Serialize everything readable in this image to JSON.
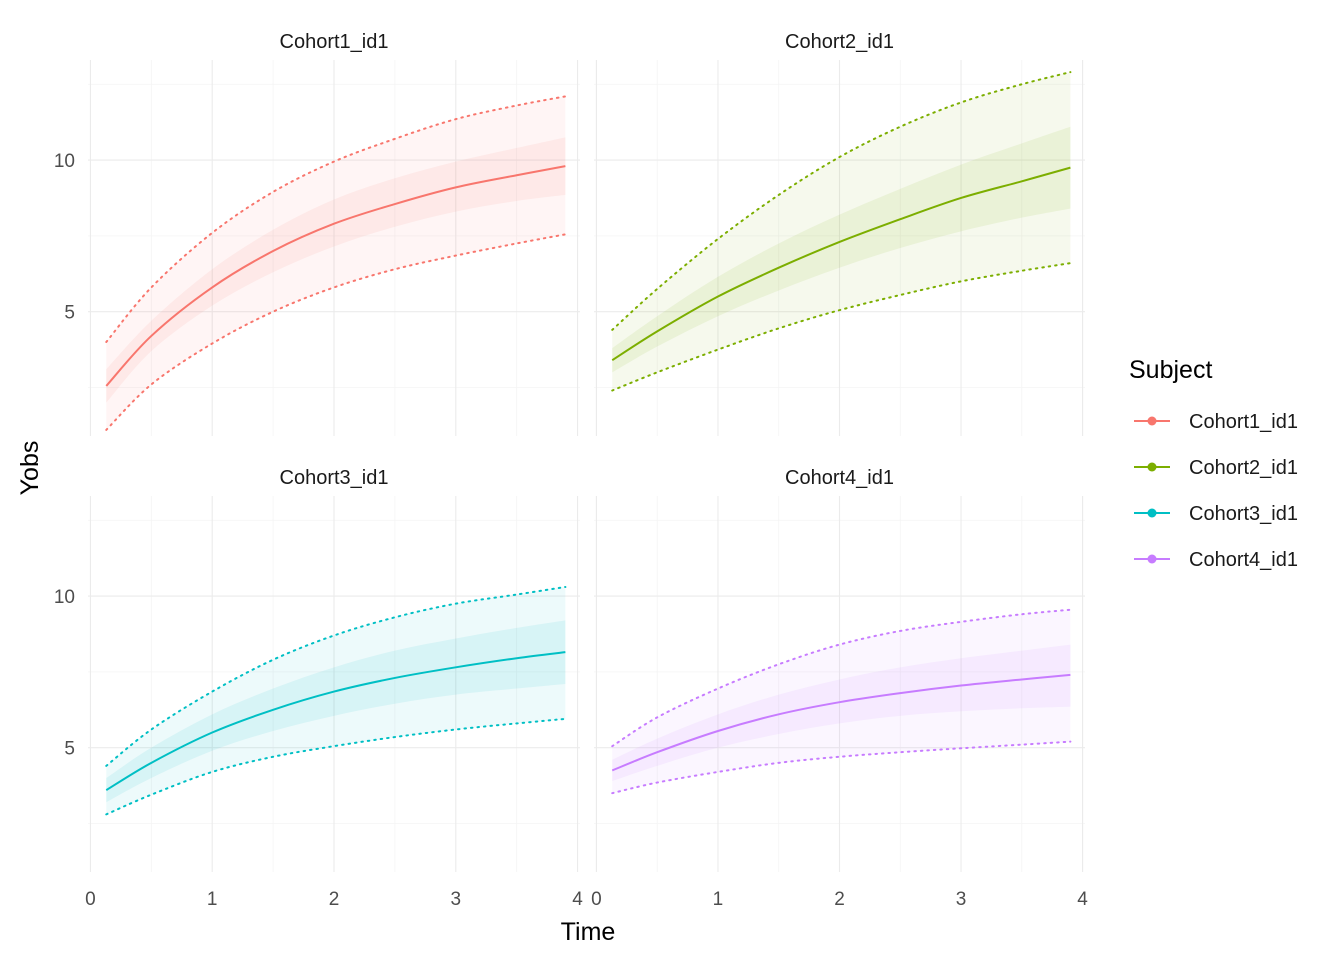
{
  "chart_data": {
    "type": "line",
    "xlabel": "Time",
    "ylabel": "Yobs",
    "xlim": [
      -0.02,
      4.02
    ],
    "ylim": [
      0.9,
      13.3
    ],
    "x_ticks": [
      0,
      1,
      2,
      3,
      4
    ],
    "y_ticks": [
      5,
      10
    ],
    "grid": true,
    "legend": {
      "title": "Subject",
      "position": "right"
    },
    "panels": [
      {
        "name": "Cohort1_id1",
        "color": "#F8766D",
        "x": [
          0.13,
          0.5,
          1.0,
          1.5,
          2.0,
          2.5,
          3.0,
          3.5,
          3.9
        ],
        "median": [
          2.55,
          4.2,
          5.8,
          7.0,
          7.9,
          8.55,
          9.1,
          9.5,
          9.8
        ],
        "inner_lo": [
          2.0,
          3.7,
          5.2,
          6.3,
          7.15,
          7.8,
          8.3,
          8.65,
          8.85
        ],
        "inner_hi": [
          3.1,
          4.7,
          6.4,
          7.7,
          8.7,
          9.4,
          9.95,
          10.4,
          10.75
        ],
        "outer_lo": [
          1.1,
          2.6,
          3.95,
          5.0,
          5.8,
          6.4,
          6.85,
          7.25,
          7.55
        ],
        "outer_hi": [
          4.0,
          5.8,
          7.6,
          8.95,
          9.95,
          10.7,
          11.35,
          11.8,
          12.1
        ]
      },
      {
        "name": "Cohort2_id1",
        "color": "#7CAE00",
        "x": [
          0.13,
          0.5,
          1.0,
          1.5,
          2.0,
          2.5,
          3.0,
          3.5,
          3.9
        ],
        "median": [
          3.4,
          4.35,
          5.5,
          6.45,
          7.3,
          8.05,
          8.75,
          9.3,
          9.75
        ],
        "inner_lo": [
          3.0,
          3.85,
          4.85,
          5.7,
          6.45,
          7.1,
          7.65,
          8.1,
          8.4
        ],
        "inner_hi": [
          3.8,
          4.85,
          6.15,
          7.25,
          8.2,
          9.05,
          9.85,
          10.55,
          11.1
        ],
        "outer_lo": [
          2.4,
          3.0,
          3.75,
          4.45,
          5.05,
          5.55,
          6.0,
          6.35,
          6.6
        ],
        "outer_hi": [
          4.4,
          5.75,
          7.4,
          8.85,
          10.1,
          11.1,
          11.9,
          12.5,
          12.9
        ]
      },
      {
        "name": "Cohort3_id1",
        "color": "#00BFC4",
        "x": [
          0.13,
          0.5,
          1.0,
          1.5,
          2.0,
          2.5,
          3.0,
          3.5,
          3.9
        ],
        "median": [
          3.6,
          4.5,
          5.5,
          6.25,
          6.85,
          7.3,
          7.65,
          7.95,
          8.15
        ],
        "inner_lo": [
          3.2,
          4.0,
          4.9,
          5.55,
          6.05,
          6.45,
          6.75,
          6.95,
          7.1
        ],
        "inner_hi": [
          4.0,
          5.0,
          6.1,
          6.95,
          7.65,
          8.2,
          8.6,
          8.95,
          9.2
        ],
        "outer_lo": [
          2.8,
          3.45,
          4.2,
          4.7,
          5.05,
          5.35,
          5.6,
          5.8,
          5.95
        ],
        "outer_hi": [
          4.4,
          5.6,
          6.85,
          7.9,
          8.7,
          9.3,
          9.75,
          10.05,
          10.3
        ]
      },
      {
        "name": "Cohort4_id1",
        "color": "#C77CFF",
        "x": [
          0.13,
          0.5,
          1.0,
          1.5,
          2.0,
          2.5,
          3.0,
          3.5,
          3.9
        ],
        "median": [
          4.25,
          4.85,
          5.55,
          6.1,
          6.5,
          6.8,
          7.05,
          7.25,
          7.4
        ],
        "inner_lo": [
          3.9,
          4.4,
          5.0,
          5.45,
          5.8,
          6.05,
          6.2,
          6.3,
          6.35
        ],
        "inner_hi": [
          4.6,
          5.3,
          6.1,
          6.75,
          7.25,
          7.65,
          7.95,
          8.2,
          8.4
        ],
        "outer_lo": [
          3.5,
          3.85,
          4.2,
          4.5,
          4.7,
          4.85,
          4.98,
          5.1,
          5.2
        ],
        "outer_hi": [
          5.05,
          6.0,
          6.95,
          7.75,
          8.4,
          8.85,
          9.15,
          9.4,
          9.55
        ]
      }
    ]
  }
}
